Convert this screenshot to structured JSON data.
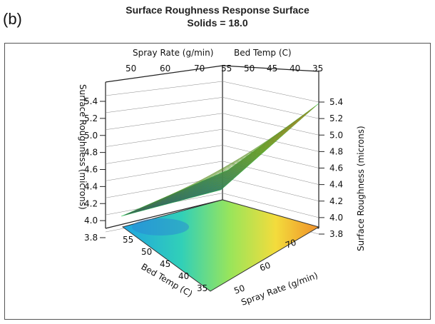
{
  "panel_label": "(b)",
  "chart_data": {
    "type": "surface3d",
    "title": "Surface Roughness Response Surface",
    "subtitle": "Solids = 18.0",
    "zlabel": "Surface Roughness (microns)",
    "xlabel": "Spray Rate (g/min)",
    "ylabel": "Bed Temp (C)",
    "z_ticks": [
      "3.8",
      "4.0",
      "4.2",
      "4.4",
      "4.6",
      "4.8",
      "5.0",
      "5.2",
      "5.4"
    ],
    "x_ticks_top": [
      "50",
      "60",
      "70"
    ],
    "y_ticks_top": [
      "55",
      "50",
      "45",
      "40",
      "35"
    ],
    "y_ticks_bottom": [
      "55",
      "50",
      "45",
      "40",
      "35"
    ],
    "x_ticks_bottom": [
      "50",
      "60",
      "70"
    ],
    "zlim": [
      3.8,
      5.4
    ],
    "xlim": [
      45,
      72
    ],
    "ylim": [
      35,
      56
    ],
    "surface_corners": {
      "spray50_bed55": 4.0,
      "spray70_bed55": 4.05,
      "spray70_bed35": 5.4,
      "spray50_bed35": 4.15
    },
    "grid": true
  }
}
